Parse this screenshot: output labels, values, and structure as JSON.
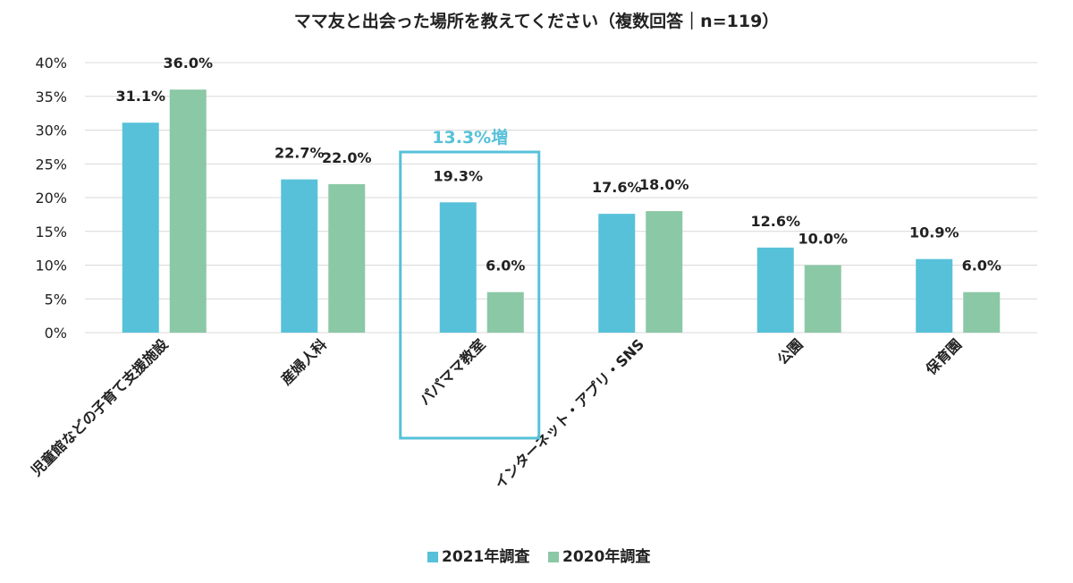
{
  "chart_data": {
    "type": "bar",
    "title": "ママ友と出会った場所を教えてください（複数回答｜n=119）",
    "categories": [
      "児童館などの子育て支援施設",
      "産婦人科",
      "パパママ教室",
      "インターネット・アプリ・SNS",
      "公園",
      "保育園"
    ],
    "series": [
      {
        "name": "2021年調査",
        "color": "#57c1d9",
        "values": [
          31.1,
          22.7,
          19.3,
          17.6,
          12.6,
          10.9
        ],
        "labels": [
          "31.1%",
          "22.7%",
          "19.3%",
          "17.6%",
          "12.6%",
          "10.9%"
        ]
      },
      {
        "name": "2020年調査",
        "color": "#8bc8a6",
        "values": [
          36.0,
          22.0,
          6.0,
          18.0,
          10.0,
          6.0
        ],
        "labels": [
          "36.0%",
          "22.0%",
          "6.0%",
          "18.0%",
          "10.0%",
          "6.0%"
        ]
      }
    ],
    "ylim": [
      0,
      40
    ],
    "yticks": [
      0,
      5,
      10,
      15,
      20,
      25,
      30,
      35,
      40
    ],
    "ytick_labels": [
      "0%",
      "5%",
      "10%",
      "15%",
      "20%",
      "25%",
      "30%",
      "35%",
      "40%"
    ],
    "grid": true,
    "legend_position": "bottom",
    "annotation": {
      "text": "13.3%増",
      "category": "パパママ教室",
      "color": "#57c1d9"
    }
  }
}
